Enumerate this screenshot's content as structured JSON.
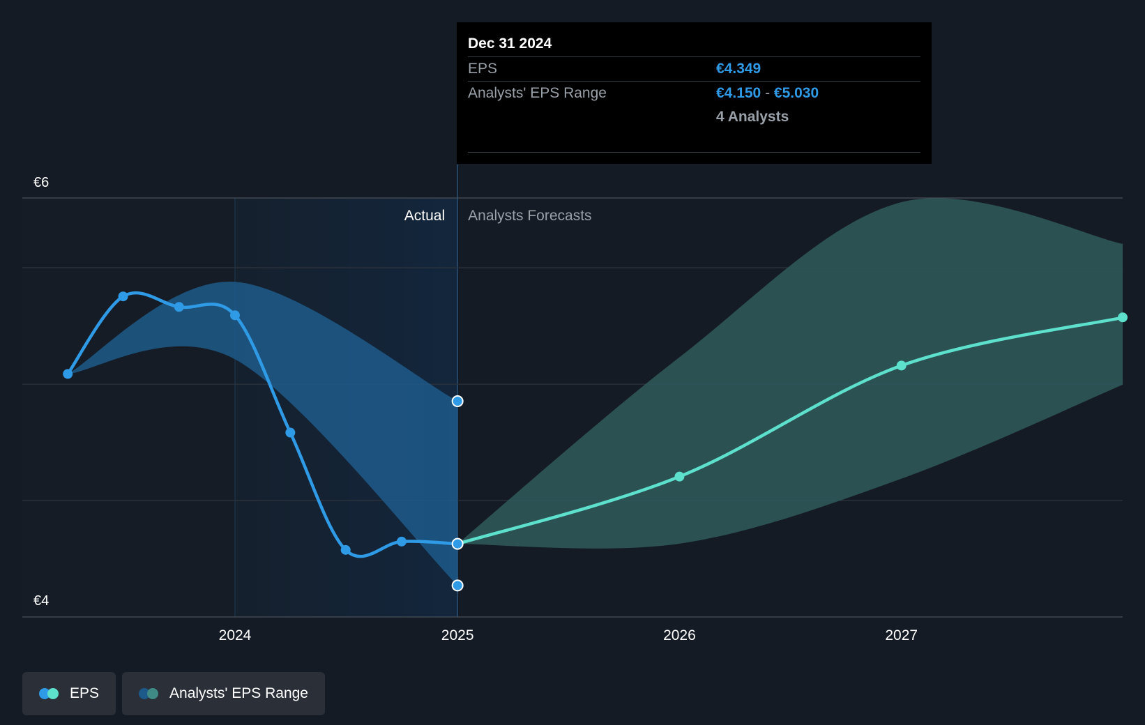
{
  "chart_data": {
    "type": "line",
    "y_axis": {
      "ylim": [
        4,
        6
      ],
      "tick_labels": [
        "€6",
        "€4"
      ]
    },
    "x_axis": {
      "tick_labels": [
        "2024",
        "2025",
        "2026",
        "2027"
      ]
    },
    "regions": {
      "actual_label": "Actual",
      "forecast_label": "Analysts Forecasts"
    },
    "series": [
      {
        "name": "EPS",
        "points": [
          {
            "x": "2023-03-31",
            "y": 5.16
          },
          {
            "x": "2023-06-30",
            "y": 5.53
          },
          {
            "x": "2023-09-30",
            "y": 5.48
          },
          {
            "x": "2023-12-31",
            "y": 5.44
          },
          {
            "x": "2024-03-31",
            "y": 4.88
          },
          {
            "x": "2024-06-30",
            "y": 4.32
          },
          {
            "x": "2024-09-30",
            "y": 4.36
          },
          {
            "x": "2024-12-31",
            "y": 4.349
          }
        ]
      },
      {
        "name": "EPS Forecast",
        "points": [
          {
            "x": "2024-12-31",
            "y": 4.349
          },
          {
            "x": "2025-12-31",
            "y": 4.67
          },
          {
            "x": "2026-12-31",
            "y": 5.2
          },
          {
            "x": "2027-12-31",
            "y": 5.43
          }
        ]
      }
    ],
    "ranges": [
      {
        "name": "Analysts' EPS Range (past)",
        "points": [
          {
            "x": "2023-03-31",
            "low": 5.16,
            "high": 5.16
          },
          {
            "x": "2023-12-31",
            "low": 5.23,
            "high": 5.6
          },
          {
            "x": "2024-12-31",
            "low": 4.15,
            "high": 5.03
          }
        ]
      },
      {
        "name": "Analysts' EPS Range (forecast)",
        "points": [
          {
            "x": "2024-12-31",
            "low": 4.349,
            "high": 4.349
          },
          {
            "x": "2025-12-31",
            "low": 4.35,
            "high": 5.24
          },
          {
            "x": "2026-12-31",
            "low": 4.66,
            "high": 5.98
          },
          {
            "x": "2027-12-31",
            "low": 5.11,
            "high": 5.78
          }
        ]
      }
    ],
    "colors": {
      "eps": "#2f9ae6",
      "forecast": "#5de0cc",
      "range_past": "#1d5a8a",
      "range_forecast": "#2f5a5c",
      "actual_region": "#13253a"
    }
  },
  "tooltip": {
    "date": "Dec 31 2024",
    "eps_label": "EPS",
    "eps_value": "€4.349",
    "range_label": "Analysts' EPS Range",
    "range_low": "€4.150",
    "range_sep": "-",
    "range_high": "€5.030",
    "analysts": "4 Analysts"
  },
  "legend": {
    "eps_label": "EPS",
    "range_label": "Analysts' EPS Range"
  }
}
